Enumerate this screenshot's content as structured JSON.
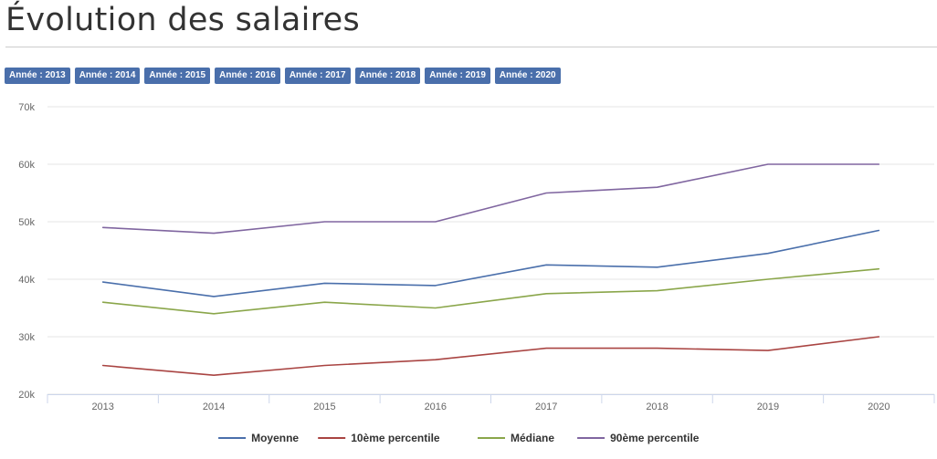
{
  "header": {
    "title": "Évolution des salaires"
  },
  "year_tabs": [
    {
      "label": "Année : 2013"
    },
    {
      "label": "Année : 2014"
    },
    {
      "label": "Année : 2015"
    },
    {
      "label": "Année : 2016"
    },
    {
      "label": "Année : 2017"
    },
    {
      "label": "Année : 2018"
    },
    {
      "label": "Année : 2019"
    },
    {
      "label": "Année : 2020"
    }
  ],
  "colors": {
    "tab_bg": "#4a6fab"
  },
  "chart_data": {
    "type": "line",
    "title": "",
    "xlabel": "",
    "ylabel": "",
    "categories": [
      "2013",
      "2014",
      "2015",
      "2016",
      "2017",
      "2018",
      "2019",
      "2020"
    ],
    "ylim": [
      20000,
      70000
    ],
    "yticks": [
      20000,
      30000,
      40000,
      50000,
      60000,
      70000
    ],
    "ytick_labels": [
      "20k",
      "30k",
      "40k",
      "50k",
      "60k",
      "70k"
    ],
    "grid": true,
    "legend_position": "bottom",
    "series": [
      {
        "name": "Moyenne",
        "color": "#4a6fab",
        "values": [
          39500,
          37000,
          39300,
          38900,
          42500,
          42100,
          44500,
          48500
        ]
      },
      {
        "name": "10ème percentile",
        "color": "#a94442",
        "values": [
          25000,
          23300,
          25000,
          26000,
          28000,
          28000,
          27600,
          30000
        ]
      },
      {
        "name": "Médiane",
        "color": "#8aa64a",
        "values": [
          36000,
          34000,
          36000,
          35000,
          37500,
          38000,
          40000,
          41800
        ]
      },
      {
        "name": "90ème percentile",
        "color": "#8066a0",
        "values": [
          49000,
          48000,
          50000,
          50000,
          55000,
          56000,
          60000,
          60000
        ]
      }
    ]
  }
}
